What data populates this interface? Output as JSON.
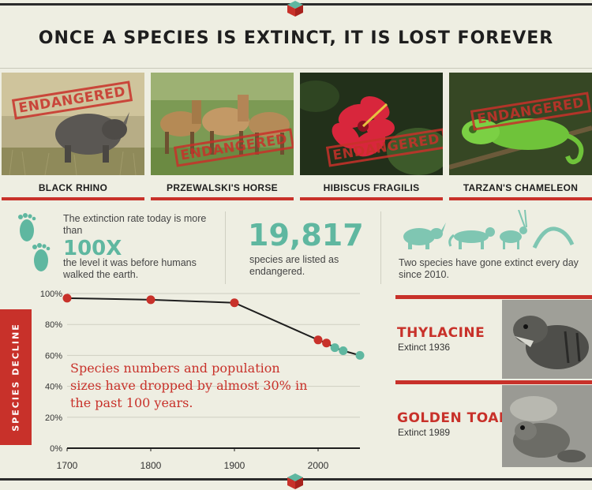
{
  "title": "ONCE A SPECIES IS EXTINCT, IT IS LOST FOREVER",
  "stamp_text": "ENDANGERED",
  "species": [
    {
      "name": "BLACK RHINO"
    },
    {
      "name": "PRZEWALSKI'S HORSE"
    },
    {
      "name": "HIBISCUS FRAGILIS"
    },
    {
      "name": "TARZAN'S CHAMELEON"
    }
  ],
  "stats": {
    "rate_prefix": "The extinction rate today is more than",
    "rate_value": "100X",
    "rate_suffix": "the level it was before humans walked the earth.",
    "endangered_count": "19,817",
    "endangered_text": "species are listed as endangered.",
    "daily_text": "Two species have gone extinct every day since 2010."
  },
  "chart_data": {
    "type": "line",
    "ylabel": "SPECIES DECLINE",
    "xlabel": "",
    "x_ticks": [
      "1700",
      "1800",
      "1900",
      "2000"
    ],
    "y_ticks": [
      "100%",
      "80%",
      "60%",
      "40%",
      "20%",
      "0%"
    ],
    "xlim": [
      1700,
      2050
    ],
    "ylim": [
      0,
      100
    ],
    "x": [
      1700,
      1800,
      1900,
      2000,
      2010,
      2020,
      2030,
      2050
    ],
    "values": [
      97,
      96,
      94,
      70,
      68,
      65,
      63,
      60
    ],
    "point_colors": [
      "#c8312a",
      "#c8312a",
      "#c8312a",
      "#c8312a",
      "#c8312a",
      "#5fb7a0",
      "#5fb7a0",
      "#5fb7a0"
    ],
    "annotation": "Species numbers and population sizes have dropped by almost 30% in the past 100 years."
  },
  "extinct": [
    {
      "name": "THYLACINE",
      "year": "Extinct 1936"
    },
    {
      "name": "GOLDEN TOAD",
      "year": "Extinct 1989"
    }
  ],
  "colors": {
    "accent": "#c8312a",
    "green": "#5fb7a0",
    "background": "#eeeee2"
  }
}
